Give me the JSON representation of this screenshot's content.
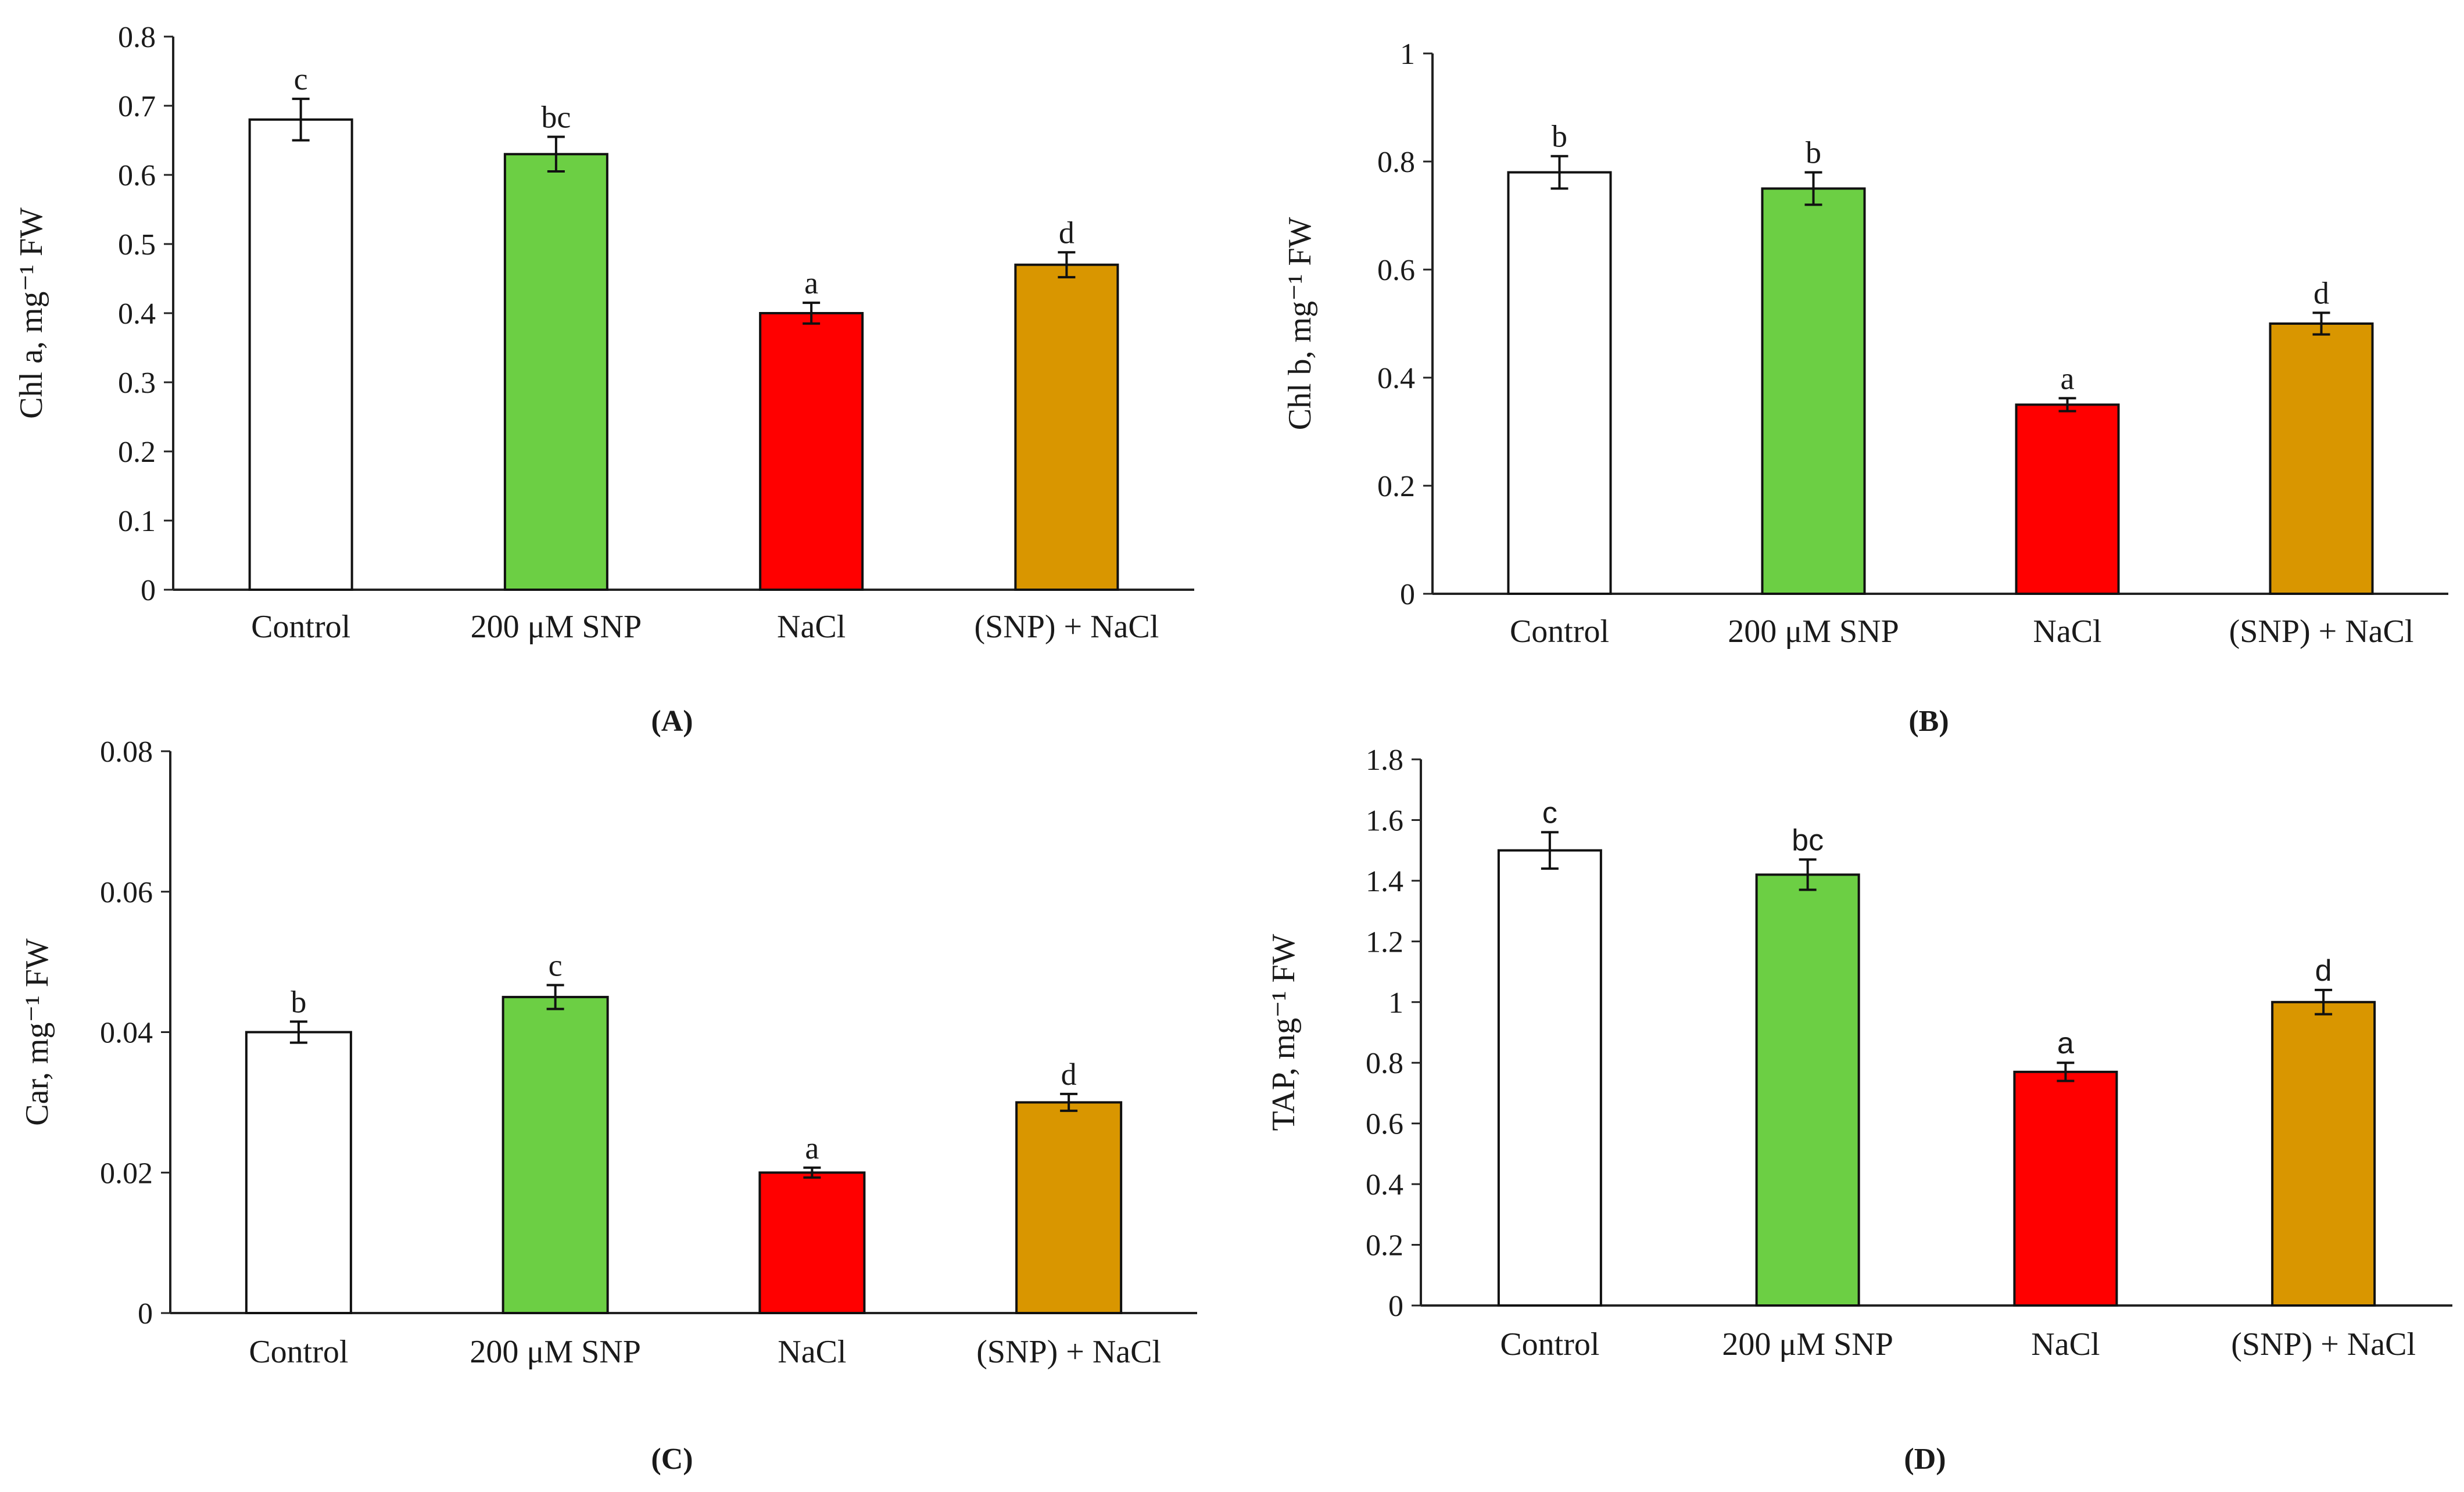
{
  "chart_data": [
    {
      "type": "bar",
      "panel_label": "(A)",
      "ylabel": "Chl a, mg⁻¹ FW",
      "categories": [
        "Control",
        "200 μM SNP",
        "NaCl",
        "(SNP) + NaCl"
      ],
      "values": [
        0.68,
        0.63,
        0.4,
        0.47
      ],
      "errors": [
        0.03,
        0.025,
        0.015,
        0.018
      ],
      "sig_letters": [
        "c",
        "bc",
        "a",
        "d"
      ],
      "colors": [
        "#ffffff",
        "#6ccf44",
        "#ff0000",
        "#d99600"
      ],
      "ylim": [
        0,
        0.8
      ],
      "yticks": [
        0,
        0.1,
        0.2,
        0.3,
        0.4,
        0.5,
        0.6,
        0.7,
        0.8
      ],
      "ytick_labels": [
        "0",
        "0.1",
        "0.2",
        "0.3",
        "0.4",
        "0.5",
        "0.6",
        "0.7",
        "0.8"
      ]
    },
    {
      "type": "bar",
      "panel_label": "(B)",
      "ylabel": "Chl b, mg⁻¹ FW",
      "categories": [
        "Control",
        "200 μM SNP",
        "NaCl",
        "(SNP) + NaCl"
      ],
      "values": [
        0.78,
        0.75,
        0.35,
        0.5
      ],
      "errors": [
        0.03,
        0.03,
        0.012,
        0.02
      ],
      "sig_letters": [
        "b",
        "b",
        "a",
        "d"
      ],
      "colors": [
        "#ffffff",
        "#6ccf44",
        "#ff0000",
        "#d99600"
      ],
      "ylim": [
        0,
        1
      ],
      "yticks": [
        0,
        0.2,
        0.4,
        0.6,
        0.8,
        1
      ],
      "ytick_labels": [
        "0",
        "0.2",
        "0.4",
        "0.6",
        "0.8",
        "1"
      ]
    },
    {
      "type": "bar",
      "panel_label": "(C)",
      "ylabel": "Car, mg⁻¹ FW",
      "categories": [
        "Control",
        "200 μM SNP",
        "NaCl",
        "(SNP) + NaCl"
      ],
      "values": [
        0.04,
        0.045,
        0.02,
        0.03
      ],
      "errors": [
        0.0015,
        0.0017,
        0.0007,
        0.0012
      ],
      "sig_letters": [
        "b",
        "c",
        "a",
        "d"
      ],
      "colors": [
        "#ffffff",
        "#6ccf44",
        "#ff0000",
        "#d99600"
      ],
      "ylim": [
        0,
        0.08
      ],
      "yticks": [
        0,
        0.02,
        0.04,
        0.06,
        0.08
      ],
      "ytick_labels": [
        "0",
        "0.02",
        "0.04",
        "0.06",
        "0.08"
      ]
    },
    {
      "type": "bar",
      "panel_label": "(D)",
      "ylabel": "TAP, mg⁻¹ FW",
      "categories": [
        "Control",
        "200 μM SNP",
        "NaCl",
        "(SNP) + NaCl"
      ],
      "values": [
        1.5,
        1.42,
        0.77,
        1.0
      ],
      "errors": [
        0.06,
        0.05,
        0.03,
        0.04
      ],
      "sig_letters": [
        "c",
        "bc",
        "a",
        "d"
      ],
      "colors": [
        "#ffffff",
        "#6ccf44",
        "#ff0000",
        "#d99600"
      ],
      "ylim": [
        0,
        1.8
      ],
      "yticks": [
        0,
        0.2,
        0.4,
        0.6,
        0.8,
        1,
        1.2,
        1.4,
        1.6,
        1.8
      ],
      "ytick_labels": [
        "0",
        "0.2",
        "0.4",
        "0.6",
        "0.8",
        "1",
        "1.2",
        "1.4",
        "1.6",
        "1.8"
      ]
    }
  ]
}
